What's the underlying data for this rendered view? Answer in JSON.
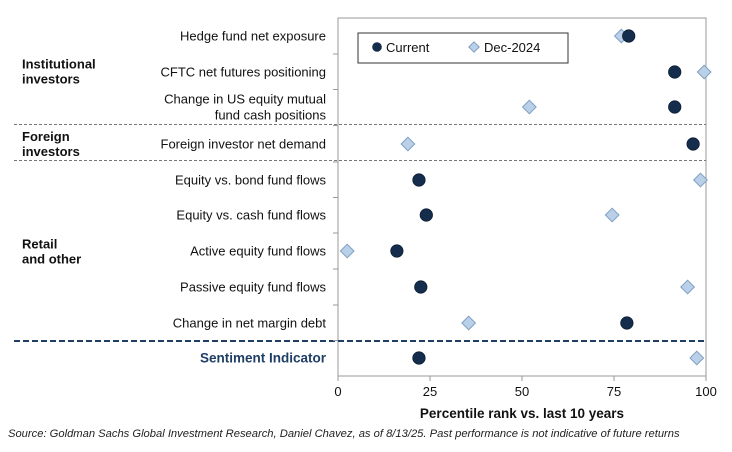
{
  "chart_data": {
    "type": "scatter",
    "xlabel": "Percentile rank vs. last 10 years",
    "xlim": [
      0,
      100
    ],
    "xticks": [
      "0",
      "25",
      "50",
      "75",
      "100"
    ],
    "colors": {
      "current": "#142d4c",
      "dec2024": "#b9d0e8",
      "dec2024_stroke": "#7f9fc1",
      "sentiment": "#1f3e66"
    },
    "legend": {
      "position": "top-right",
      "entries": [
        {
          "name": "Current",
          "marker": "circle"
        },
        {
          "name": "Dec-2024",
          "marker": "diamond"
        }
      ]
    },
    "groups": [
      {
        "name_lines": [
          "Institutional",
          "investors"
        ],
        "rows": [
          0,
          2
        ]
      },
      {
        "name_lines": [
          "Foreign",
          "investors"
        ],
        "rows": [
          3,
          3
        ]
      },
      {
        "name_lines": [
          "Retail",
          "and other"
        ],
        "rows": [
          4,
          8
        ]
      }
    ],
    "categories": [
      {
        "lines": [
          "Hedge fund net exposure"
        ],
        "current": 79,
        "dec2024": 77
      },
      {
        "lines": [
          "CFTC net futures positioning"
        ],
        "current": 91.5,
        "dec2024": 99.5
      },
      {
        "lines": [
          "Change in US equity mutual",
          "fund cash positions"
        ],
        "current": 91.5,
        "dec2024": 52
      },
      {
        "lines": [
          "Foreign investor net demand"
        ],
        "current": 96.5,
        "dec2024": 19
      },
      {
        "lines": [
          "Equity vs. bond fund flows"
        ],
        "current": 22,
        "dec2024": 98.5
      },
      {
        "lines": [
          "Equity vs. cash fund flows"
        ],
        "current": 24,
        "dec2024": 74.5
      },
      {
        "lines": [
          "Active equity fund flows"
        ],
        "current": 16,
        "dec2024": 2.5
      },
      {
        "lines": [
          "Passive equity fund flows"
        ],
        "current": 22.5,
        "dec2024": 95
      },
      {
        "lines": [
          "Change in net margin debt"
        ],
        "current": 78.5,
        "dec2024": 35.5
      },
      {
        "lines": [
          "Sentiment Indicator"
        ],
        "current": 22,
        "dec2024": 97.5,
        "highlight": true
      }
    ]
  },
  "source_note": "Source: Goldman Sachs Global Investment Research, Daniel Chavez,  as of 8/13/25. Past performance is not indicative of future returns"
}
